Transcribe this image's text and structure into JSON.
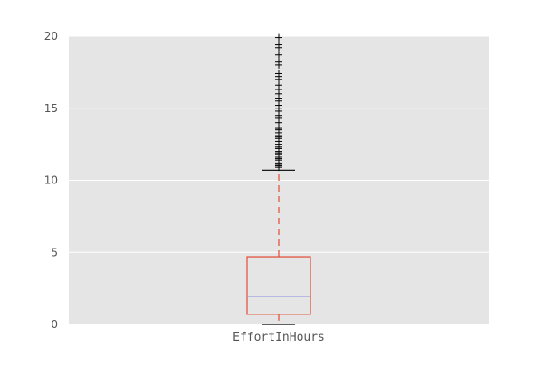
{
  "chart_data": {
    "type": "box",
    "title": "",
    "xlabel": "",
    "ylabel": "",
    "categories": [
      "EffortInHours"
    ],
    "ylim": [
      0,
      20
    ],
    "yticks": [
      0,
      5,
      10,
      15,
      20
    ],
    "grid": true,
    "box": {
      "min": 0.0,
      "q1": 0.7,
      "median": 1.95,
      "q3": 4.7,
      "max": 10.7
    },
    "outliers": [
      10.9,
      11.0,
      11.1,
      11.2,
      11.4,
      11.5,
      11.6,
      11.8,
      11.9,
      12.0,
      12.2,
      12.3,
      12.5,
      12.7,
      12.9,
      13.0,
      13.1,
      13.3,
      13.5,
      13.6,
      14.0,
      14.3,
      14.5,
      14.8,
      15.0,
      15.2,
      15.5,
      15.7,
      16.0,
      16.3,
      16.6,
      17.0,
      17.2,
      17.4,
      18.0,
      18.2,
      18.7,
      19.2,
      19.4,
      19.9
    ],
    "colors": {
      "plot_background": "#e5e5e5",
      "grid": "#ffffff",
      "box": "#e24a33",
      "whisker": "#e24a33",
      "cap": "#000000",
      "median": "#8a8ae0",
      "flier": "#000000",
      "tick_text": "#555555"
    }
  }
}
